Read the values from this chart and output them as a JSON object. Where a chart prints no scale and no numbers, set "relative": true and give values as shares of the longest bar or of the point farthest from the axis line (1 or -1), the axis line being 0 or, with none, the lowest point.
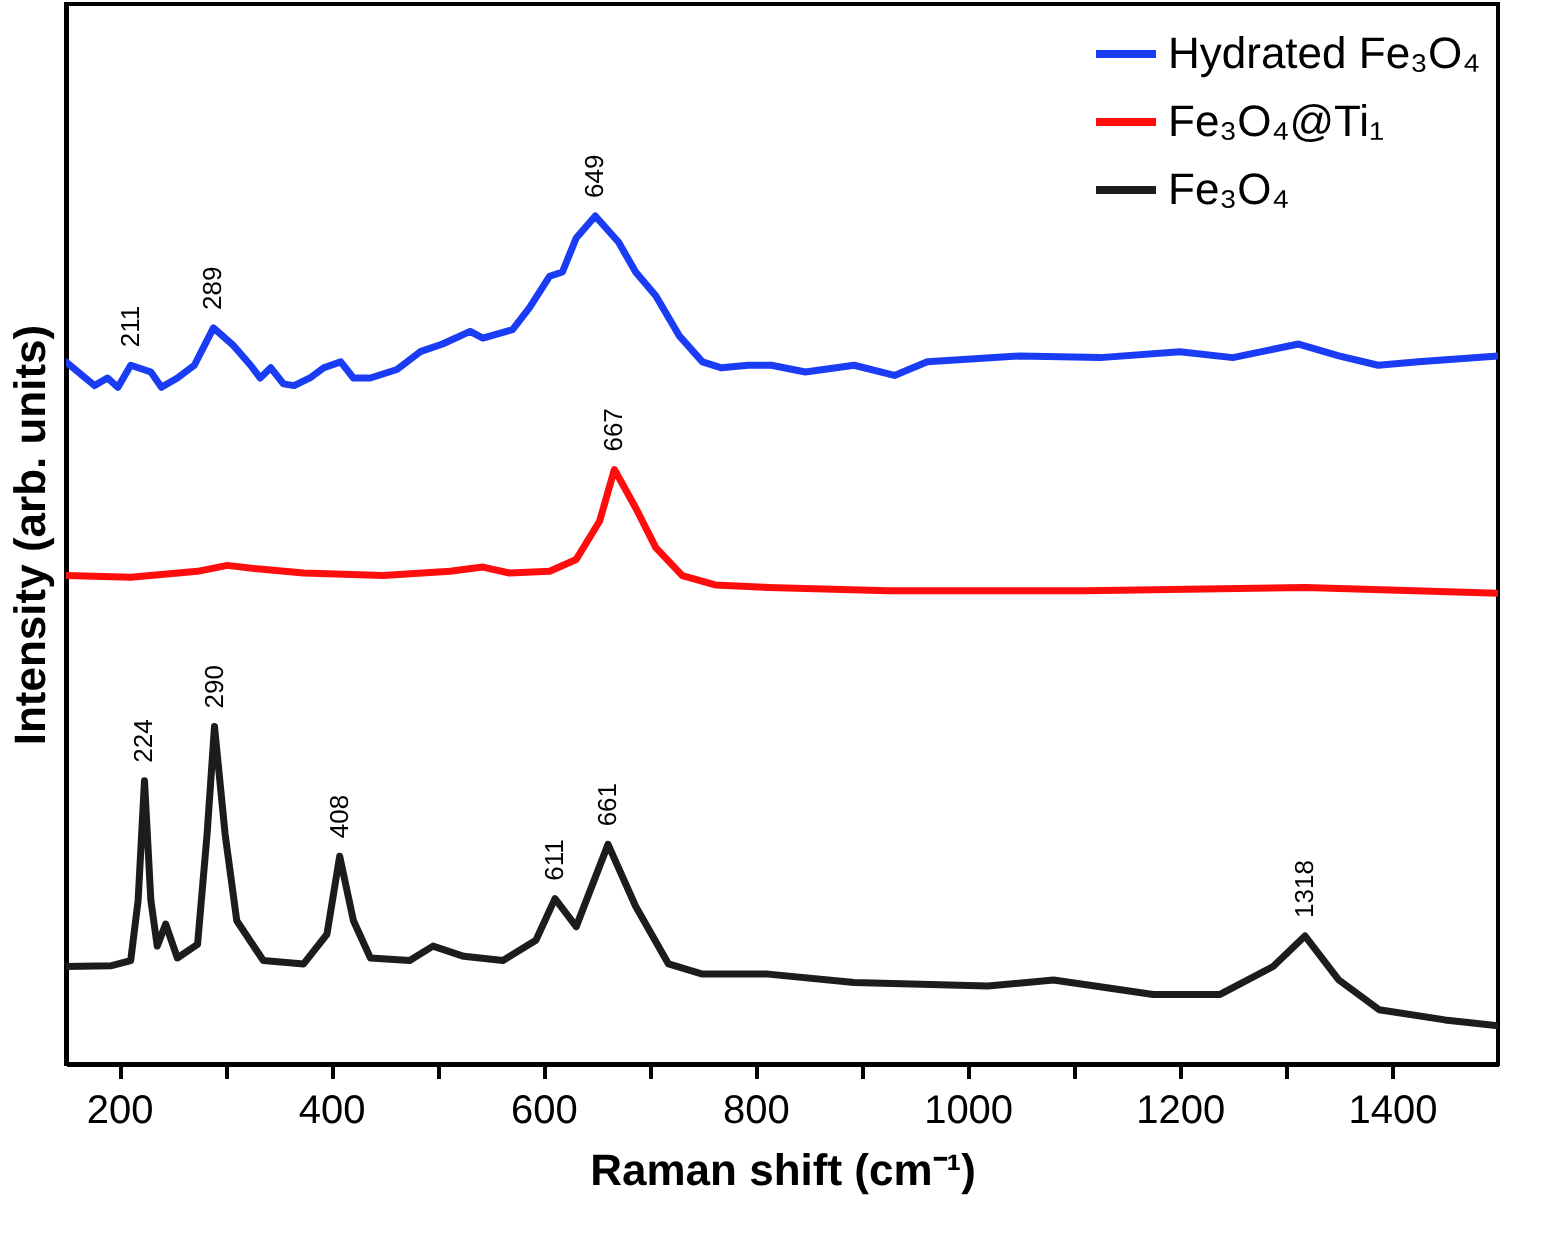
{
  "chart_data": {
    "type": "line",
    "relative": true,
    "xlabel": "Raman shift (cm⁻¹)",
    "ylabel": "Intensity (arb. units)",
    "xlim": [
      150,
      1500
    ],
    "xticks": [
      200,
      {
        "value": 300,
        "label": null
      },
      400,
      {
        "value": 500,
        "label": null
      },
      600,
      {
        "value": 700,
        "label": null
      },
      800,
      {
        "value": 900,
        "label": null
      },
      1000,
      {
        "value": 1100,
        "label": null
      },
      1200,
      {
        "value": 1300,
        "label": null
      },
      1400
    ],
    "legend": "top right",
    "series": [
      {
        "name": "Hydrated Fe₃O₄",
        "color": "#1a3cf5",
        "x": [
          150,
          177,
          189,
          199,
          211,
          230,
          240,
          255,
          271,
          289,
          308,
          324,
          333,
          343,
          355,
          365,
          380,
          393,
          409,
          421,
          437,
          462,
          484,
          505,
          531,
          543,
          571,
          587,
          606,
          618,
          631,
          649,
          671,
          687,
          706,
          728,
          750,
          768,
          793,
          815,
          847,
          893,
          931,
          962,
          1049,
          1125,
          1200,
          1250,
          1312,
          1350,
          1387,
          1425,
          1500
        ],
        "values": [
          0.828,
          0.8,
          0.809,
          0.798,
          0.824,
          0.816,
          0.798,
          0.809,
          0.824,
          0.868,
          0.847,
          0.824,
          0.809,
          0.821,
          0.802,
          0.8,
          0.809,
          0.821,
          0.828,
          0.809,
          0.809,
          0.819,
          0.84,
          0.849,
          0.864,
          0.856,
          0.866,
          0.892,
          0.929,
          0.934,
          0.974,
          1.0,
          0.969,
          0.934,
          0.906,
          0.859,
          0.828,
          0.821,
          0.824,
          0.824,
          0.816,
          0.824,
          0.812,
          0.828,
          0.835,
          0.833,
          0.84,
          0.833,
          0.849,
          0.835,
          0.824,
          0.828,
          0.835
        ]
      },
      {
        "name": "Fe₃O₄@Ti₁",
        "color": "#ff0d0d",
        "x": [
          150,
          211,
          274,
          302,
          330,
          374,
          449,
          512,
          543,
          568,
          606,
          631,
          653,
          667,
          687,
          706,
          731,
          762,
          812,
          925,
          1112,
          1319,
          1500
        ],
        "values": [
          0.576,
          0.574,
          0.581,
          0.588,
          0.584,
          0.579,
          0.576,
          0.581,
          0.586,
          0.579,
          0.581,
          0.595,
          0.64,
          0.701,
          0.656,
          0.609,
          0.576,
          0.565,
          0.562,
          0.558,
          0.558,
          0.562,
          0.555
        ]
      },
      {
        "name": "Fe₃O₄",
        "color": "#1c1c1c",
        "x": [
          150,
          193,
          211,
          218,
          224,
          230,
          236,
          244,
          255,
          274,
          283,
          290,
          300,
          311,
          336,
          374,
          396,
          408,
          421,
          437,
          474,
          496,
          525,
          562,
          593,
          611,
          631,
          661,
          687,
          718,
          750,
          812,
          893,
          1019,
          1081,
          1175,
          1238,
          1288,
          1318,
          1350,
          1388,
          1450,
          1500
        ],
        "values": [
          0.115,
          0.116,
          0.122,
          0.193,
          0.334,
          0.193,
          0.139,
          0.165,
          0.125,
          0.141,
          0.271,
          0.398,
          0.271,
          0.169,
          0.122,
          0.118,
          0.153,
          0.245,
          0.169,
          0.125,
          0.122,
          0.139,
          0.127,
          0.122,
          0.146,
          0.195,
          0.162,
          0.259,
          0.186,
          0.118,
          0.106,
          0.106,
          0.096,
          0.092,
          0.099,
          0.082,
          0.082,
          0.115,
          0.151,
          0.099,
          0.064,
          0.052,
          0.045
        ]
      }
    ],
    "annotations": [
      {
        "text": "211",
        "x": 211,
        "y": 0.824
      },
      {
        "text": "289",
        "x": 289,
        "y": 0.868
      },
      {
        "text": "649",
        "x": 649,
        "y": 1.0
      },
      {
        "text": "667",
        "x": 667,
        "y": 0.701
      },
      {
        "text": "224",
        "x": 224,
        "y": 0.334
      },
      {
        "text": "290",
        "x": 290,
        "y": 0.398
      },
      {
        "text": "408",
        "x": 408,
        "y": 0.245
      },
      {
        "text": "611",
        "x": 611,
        "y": 0.195
      },
      {
        "text": "661",
        "x": 661,
        "y": 0.259
      },
      {
        "text": "1318",
        "x": 1318,
        "y": 0.151
      }
    ]
  }
}
